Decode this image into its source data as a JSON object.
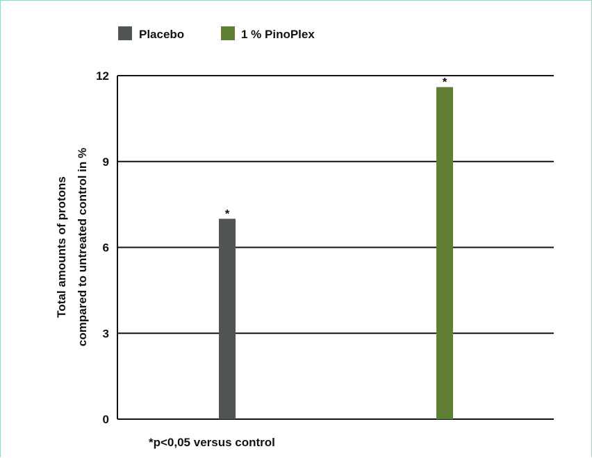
{
  "chart_data": {
    "type": "bar",
    "categories": [
      "Placebo",
      "1 % PinoPlex"
    ],
    "series": [
      {
        "name": "Placebo",
        "values": [
          7.0,
          null
        ]
      },
      {
        "name": "1 % PinoPlex",
        "values": [
          null,
          11.6
        ]
      }
    ],
    "annotations": [
      "*",
      "*"
    ],
    "title": "",
    "xlabel": "",
    "ylabel": [
      "Total amounts of protons",
      "compared to untreated control in %"
    ],
    "ylim": [
      0,
      12
    ],
    "yticks": [
      0,
      3,
      6,
      9,
      12
    ],
    "grid": true,
    "legend": "top-left",
    "footnote": "*p<0,05 versus control",
    "colors": {
      "Placebo": "#4f5550",
      "1 % PinoPlex": "#5f7f35",
      "frame": "#9fd6c6"
    }
  }
}
